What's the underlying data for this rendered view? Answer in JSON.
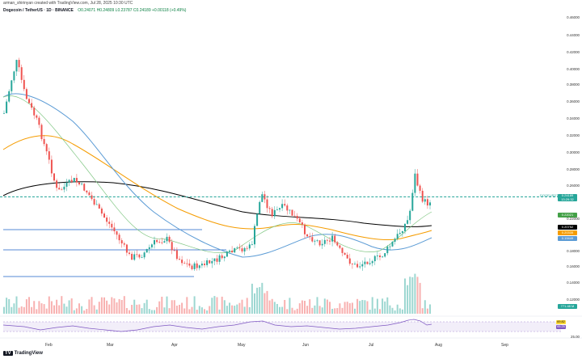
{
  "header": {
    "creator": "arman_shirinyan created with TradingView.com, Jul 28, 2025 10:30 UTC",
    "symbol": "Dogecoin / TetherUS · 1D · BINANCE",
    "ohlc": "O0.24071 H0.24809 L0.23787 C0.24189 +0.00118 (+0.49%)"
  },
  "price_axis": {
    "labels": [
      "0.46000",
      "0.44000",
      "0.42000",
      "0.40000",
      "0.38000",
      "0.36000",
      "0.34000",
      "0.32000",
      "0.30000",
      "0.28000",
      "0.26000",
      "0.22000",
      "0.18000",
      "0.16000",
      "0.14000",
      "0.12000"
    ],
    "current_symbol": "DOGEUSDT",
    "current_price": "0.24189",
    "current_countdown": "13:29:32",
    "ma_short_value": "0.22021",
    "ma_long_value": "0.20752",
    "ma_mid_value": "0.20335",
    "ma_blue_value": "0.19449",
    "volume_value": "771.48 M"
  },
  "rsi": {
    "value_high": "69.82",
    "value_low": "65.25",
    "axis_label": "25.00"
  },
  "time_axis": [
    "Feb",
    "Mar",
    "Apr",
    "May",
    "Jun",
    "Jul",
    "Aug",
    "Sep"
  ],
  "branding": "TradingView",
  "colors": {
    "up": "#26a69a",
    "down": "#ef5350",
    "ma_black": "#000000",
    "ma_orange": "#f59c00",
    "ma_blue": "#5b9bd5",
    "ma_green": "#81c784",
    "rsi_line": "#7e57c2"
  }
}
